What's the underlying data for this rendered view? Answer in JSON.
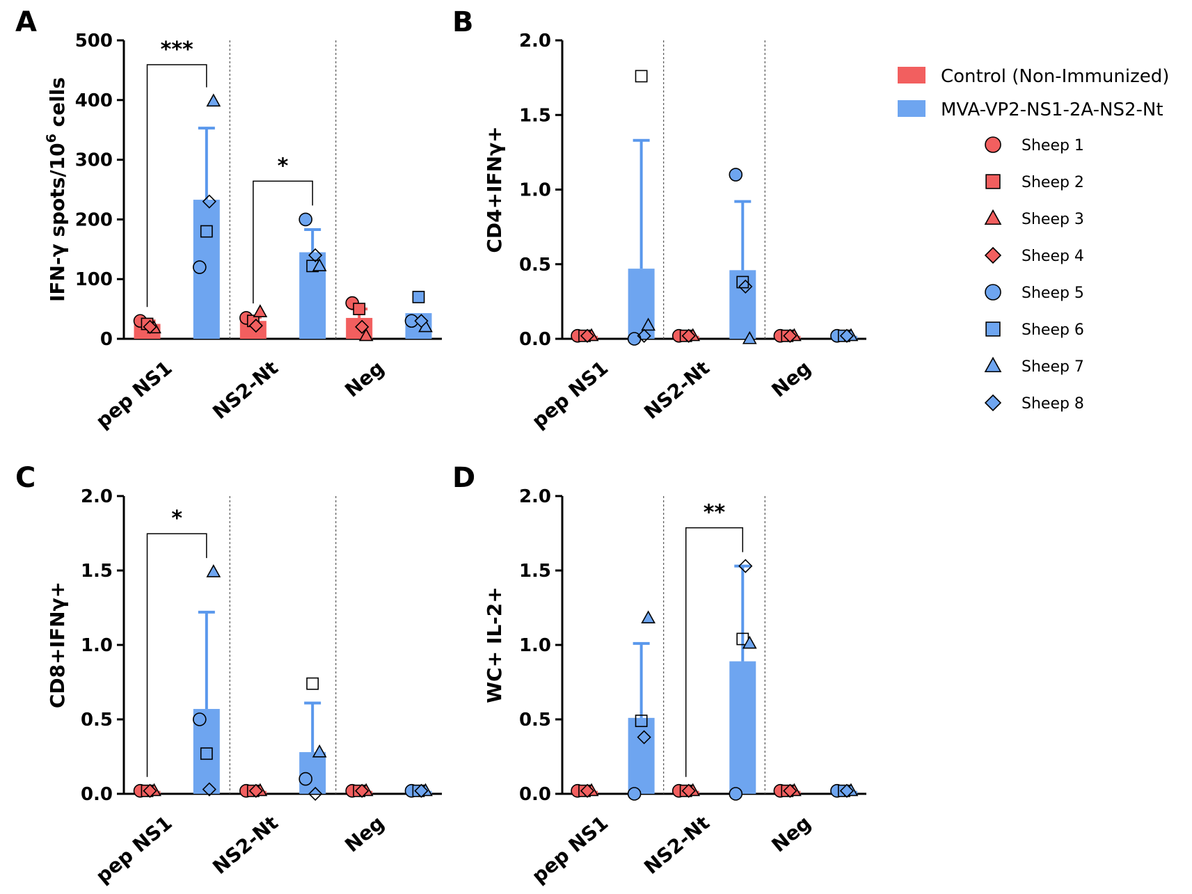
{
  "colors": {
    "control": "#f25f5f",
    "vaccine": "#6ea5f0",
    "errorbar": "#5a98ec",
    "axis": "#000000",
    "divider": "#555555"
  },
  "legend": {
    "groups": [
      {
        "label": "Control (Non-Immunized)",
        "color": "#f25f5f"
      },
      {
        "label": "MVA-VP2-NS1-2A-NS2-Nt",
        "color": "#6ea5f0"
      }
    ],
    "sheep": [
      {
        "label": "Sheep 1",
        "shape": "circle",
        "color": "#f25f5f"
      },
      {
        "label": "Sheep 2",
        "shape": "square",
        "color": "#f25f5f"
      },
      {
        "label": "Sheep 3",
        "shape": "triangle",
        "color": "#f25f5f"
      },
      {
        "label": "Sheep 4",
        "shape": "diamond",
        "color": "#f25f5f"
      },
      {
        "label": "Sheep 5",
        "shape": "circle",
        "color": "#6ea5f0"
      },
      {
        "label": "Sheep 6",
        "shape": "square",
        "color": "#6ea5f0"
      },
      {
        "label": "Sheep 7",
        "shape": "triangle",
        "color": "#6ea5f0"
      },
      {
        "label": "Sheep 8",
        "shape": "diamond",
        "color": "#6ea5f0"
      }
    ]
  },
  "chart_data": [
    {
      "panel": "A",
      "type": "bar",
      "ylabel_main": "IFN-γ spots/10",
      "ylabel_sup": "6",
      "ylabel_tail": " cells",
      "ylim": [
        0,
        500
      ],
      "yticks": [
        0,
        100,
        200,
        300,
        400,
        500
      ],
      "tick_labels": [
        "0",
        "100",
        "200",
        "300",
        "400",
        "500"
      ],
      "categories": [
        "pep NS1",
        "NS2-Nt",
        "Neg"
      ],
      "series": [
        {
          "name": "Control (Non-Immunized)",
          "means": [
            25,
            30,
            35
          ],
          "err": [
            5,
            6,
            15
          ],
          "points": [
            [
              30,
              25,
              18,
              20
            ],
            [
              35,
              30,
              45,
              22
            ],
            [
              60,
              50,
              5,
              20
            ]
          ]
        },
        {
          "name": "MVA-VP2-NS1-2A-NS2-Nt",
          "means": [
            233,
            145,
            43
          ],
          "err": [
            120,
            38,
            0
          ],
          "points": [
            [
              120,
              180,
              398,
              230
            ],
            [
              200,
              122,
              122,
              140
            ],
            [
              30,
              70,
              20,
              30
            ]
          ]
        }
      ],
      "significance": [
        {
          "category": "pep NS1",
          "label": "***"
        },
        {
          "category": "NS2-Nt",
          "label": "*"
        }
      ]
    },
    {
      "panel": "B",
      "type": "bar",
      "ylabel_main": "CD4+IFNγ+",
      "ylabel_sup": "",
      "ylabel_tail": "",
      "ylim": [
        0,
        2.0
      ],
      "yticks": [
        0,
        0.5,
        1.0,
        1.5,
        2.0
      ],
      "tick_labels": [
        "0.0",
        "0.5",
        "1.0",
        "1.5",
        "2.0"
      ],
      "categories": [
        "pep NS1",
        "NS2-Nt",
        "Neg"
      ],
      "series": [
        {
          "name": "Control (Non-Immunized)",
          "means": [
            0.02,
            0.02,
            0.02
          ],
          "err": [
            0,
            0,
            0
          ],
          "points": [
            [
              0.02,
              0.02,
              0.02,
              0.02
            ],
            [
              0.02,
              0.02,
              0.02,
              0.02
            ],
            [
              0.02,
              0.02,
              0.02,
              0.02
            ]
          ]
        },
        {
          "name": "MVA-VP2-NS1-2A-NS2-Nt",
          "means": [
            0.47,
            0.46,
            0.02
          ],
          "err": [
            0.86,
            0.46,
            0
          ],
          "points": [
            [
              0.0,
              1.76,
              0.09,
              0.02
            ],
            [
              1.1,
              0.38,
              0.0,
              0.35
            ],
            [
              0.02,
              0.02,
              0.02,
              0.02
            ]
          ]
        }
      ],
      "significance": []
    },
    {
      "panel": "C",
      "type": "bar",
      "ylabel_main": "CD8+IFNγ+",
      "ylabel_sup": "",
      "ylabel_tail": "",
      "ylim": [
        0,
        2.0
      ],
      "yticks": [
        0,
        0.5,
        1.0,
        1.5,
        2.0
      ],
      "tick_labels": [
        "0.0",
        "0.5",
        "1.0",
        "1.5",
        "2.0"
      ],
      "categories": [
        "pep NS1",
        "NS2-Nt",
        "Neg"
      ],
      "series": [
        {
          "name": "Control (Non-Immunized)",
          "means": [
            0.02,
            0.02,
            0.02
          ],
          "err": [
            0,
            0,
            0
          ],
          "points": [
            [
              0.02,
              0.02,
              0.02,
              0.02
            ],
            [
              0.02,
              0.02,
              0.02,
              0.02
            ],
            [
              0.02,
              0.02,
              0.02,
              0.02
            ]
          ]
        },
        {
          "name": "MVA-VP2-NS1-2A-NS2-Nt",
          "means": [
            0.57,
            0.28,
            0.02
          ],
          "err": [
            0.65,
            0.33,
            0
          ],
          "points": [
            [
              0.5,
              0.27,
              1.49,
              0.03
            ],
            [
              0.1,
              0.74,
              0.28,
              0.0
            ],
            [
              0.02,
              0.02,
              0.02,
              0.02
            ]
          ]
        }
      ],
      "significance": [
        {
          "category": "pep NS1",
          "label": "*"
        }
      ]
    },
    {
      "panel": "D",
      "type": "bar",
      "ylabel_main": "WC+ IL-2+",
      "ylabel_sup": "",
      "ylabel_tail": "",
      "ylim": [
        0,
        2.0
      ],
      "yticks": [
        0,
        0.5,
        1.0,
        1.5,
        2.0
      ],
      "tick_labels": [
        "0.0",
        "0.5",
        "1.0",
        "1.5",
        "2.0"
      ],
      "categories": [
        "pep NS1",
        "NS2-Nt",
        "Neg"
      ],
      "series": [
        {
          "name": "Control (Non-Immunized)",
          "means": [
            0.02,
            0.02,
            0.02
          ],
          "err": [
            0,
            0,
            0
          ],
          "points": [
            [
              0.02,
              0.02,
              0.02,
              0.02
            ],
            [
              0.02,
              0.02,
              0.02,
              0.02
            ],
            [
              0.02,
              0.02,
              0.02,
              0.02
            ]
          ]
        },
        {
          "name": "MVA-VP2-NS1-2A-NS2-Nt",
          "means": [
            0.51,
            0.89,
            0.02
          ],
          "err": [
            0.5,
            0.64,
            0
          ],
          "points": [
            [
              0.0,
              0.49,
              1.18,
              0.38
            ],
            [
              0.0,
              1.04,
              1.01,
              1.53
            ],
            [
              0.02,
              0.02,
              0.02,
              0.02
            ]
          ]
        }
      ],
      "significance": [
        {
          "category": "NS2-Nt",
          "label": "**"
        }
      ]
    }
  ]
}
